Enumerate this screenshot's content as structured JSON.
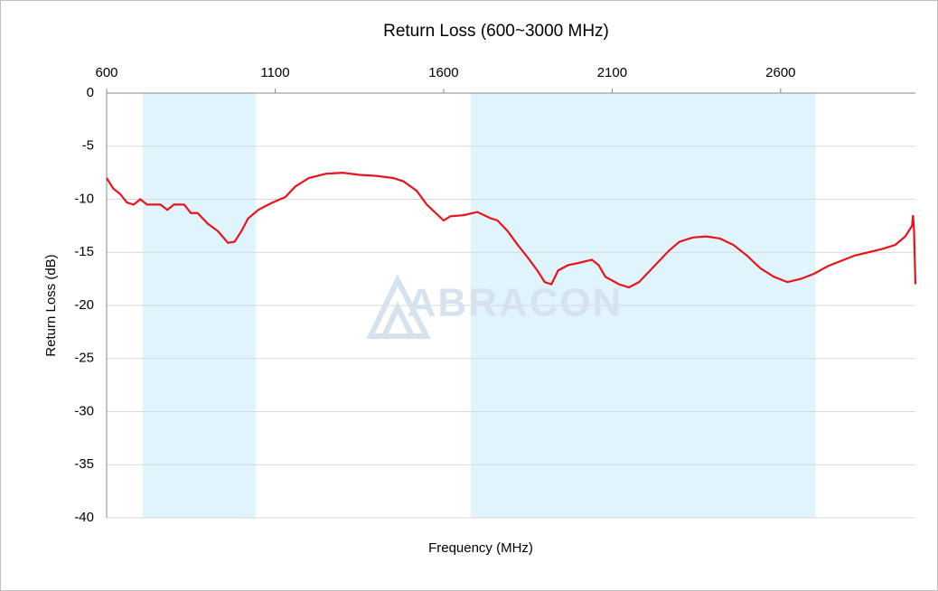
{
  "chart_data": {
    "type": "line",
    "title": "Return Loss (600~3000 MHz)",
    "x_label": "Frequency (MHz)",
    "y_label": "Return Loss (dB)",
    "watermark": "ABRACON",
    "xlim": [
      600,
      3000
    ],
    "xticks": [
      600,
      1100,
      1600,
      2100,
      2600
    ],
    "ylim": [
      -40,
      0
    ],
    "yticks": [
      0,
      -5,
      -10,
      -15,
      -20,
      -25,
      -30,
      -35,
      -40
    ],
    "grid": true,
    "bands": [
      [
        707,
        1043
      ],
      [
        1680,
        2704
      ]
    ],
    "band_color": "#dff4fc",
    "series": [
      {
        "name": "Return Loss",
        "color": "#e8141c",
        "x": [
          600,
          620,
          640,
          660,
          680,
          700,
          720,
          760,
          780,
          800,
          830,
          850,
          870,
          900,
          930,
          960,
          980,
          1000,
          1020,
          1050,
          1080,
          1100,
          1130,
          1160,
          1200,
          1250,
          1300,
          1350,
          1400,
          1450,
          1480,
          1520,
          1550,
          1580,
          1600,
          1620,
          1660,
          1700,
          1740,
          1760,
          1790,
          1820,
          1850,
          1880,
          1900,
          1920,
          1940,
          1970,
          2000,
          2040,
          2060,
          2080,
          2120,
          2150,
          2180,
          2210,
          2240,
          2270,
          2300,
          2340,
          2380,
          2420,
          2460,
          2500,
          2540,
          2580,
          2620,
          2660,
          2700,
          2740,
          2780,
          2820,
          2860,
          2900,
          2940,
          2970,
          2990,
          2993,
          2996,
          3000
        ],
        "values": [
          -8,
          -9,
          -9.5,
          -10.3,
          -10.5,
          -10,
          -10.5,
          -10.5,
          -11,
          -10.5,
          -10.5,
          -11.3,
          -11.3,
          -12.3,
          -13,
          -14.1,
          -14,
          -13,
          -11.8,
          -11,
          -10.5,
          -10.2,
          -9.8,
          -8.8,
          -8,
          -7.6,
          -7.5,
          -7.7,
          -7.8,
          -8,
          -8.3,
          -9.2,
          -10.5,
          -11.4,
          -12,
          -11.6,
          -11.5,
          -11.2,
          -11.8,
          -12,
          -13,
          -14.3,
          -15.5,
          -16.8,
          -17.8,
          -18,
          -16.7,
          -16.2,
          -16,
          -15.7,
          -16.2,
          -17.3,
          -18,
          -18.3,
          -17.8,
          -16.8,
          -15.8,
          -14.8,
          -14,
          -13.6,
          -13.5,
          -13.7,
          -14.3,
          -15.3,
          -16.5,
          -17.3,
          -17.8,
          -17.5,
          -17,
          -16.3,
          -15.8,
          -15.3,
          -15,
          -14.7,
          -14.3,
          -13.5,
          -12.5,
          -11.5,
          -13,
          -18
        ]
      }
    ]
  }
}
